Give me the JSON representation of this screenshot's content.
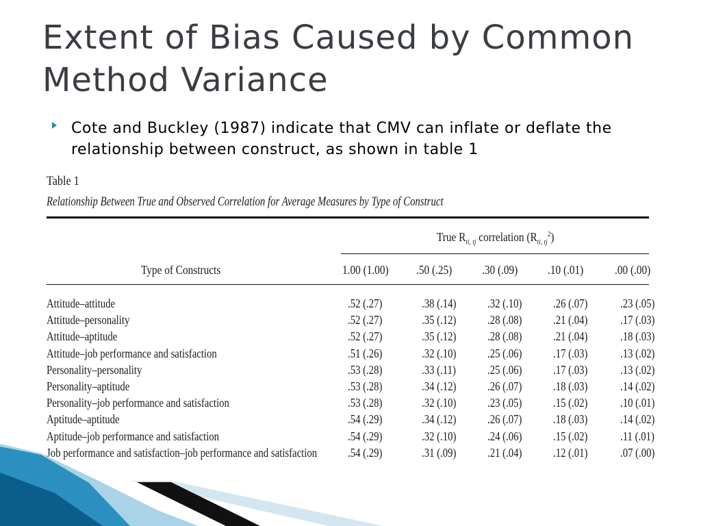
{
  "slide": {
    "title": "Extent of Bias Caused by Common Method Variance",
    "bullet": "Cote and Buckley (1987) indicate that CMV can inflate or deflate the relationship between construct, as shown in table 1"
  },
  "table": {
    "label": "Table 1",
    "caption": "Relationship Between True and Observed Correlation for Average Measures by Type of Construct",
    "true_header": "True R",
    "true_header_sub": "ti, tj",
    "true_header_mid": " correlation (R",
    "true_header_sub2": "ti, tj",
    "true_header_sup": "2",
    "true_header_end": ")",
    "type_header": "Type of Constructs",
    "columns": [
      "1.00 (1.00)",
      ".50 (.25)",
      ".30 (.09)",
      ".10 (.01)",
      ".00 (.00)"
    ],
    "rows": [
      {
        "type": "Attitude–attitude",
        "values": [
          ".52 (.27)",
          ".38 (.14)",
          ".32 (.10)",
          ".26 (.07)",
          ".23 (.05)"
        ]
      },
      {
        "type": "Attitude–personality",
        "values": [
          ".52 (.27)",
          ".35 (.12)",
          ".28 (.08)",
          ".21 (.04)",
          ".17 (.03)"
        ]
      },
      {
        "type": "Attitude–aptitude",
        "values": [
          ".52 (.27)",
          ".35 (.12)",
          ".28 (.08)",
          ".21 (.04)",
          ".18 (.03)"
        ]
      },
      {
        "type": "Attitude–job performance and satisfaction",
        "values": [
          ".51 (.26)",
          ".32 (.10)",
          ".25 (.06)",
          ".17 (.03)",
          ".13 (.02)"
        ]
      },
      {
        "type": "Personality–personality",
        "values": [
          ".53 (.28)",
          ".33 (.11)",
          ".25 (.06)",
          ".17 (.03)",
          ".13 (.02)"
        ]
      },
      {
        "type": "Personality–aptitude",
        "values": [
          ".53 (.28)",
          ".34 (.12)",
          ".26 (.07)",
          ".18 (.03)",
          ".14 (.02)"
        ]
      },
      {
        "type": "Personality–job performance and satisfaction",
        "values": [
          ".53 (.28)",
          ".32 (.10)",
          ".23 (.05)",
          ".15 (.02)",
          ".10 (.01)"
        ]
      },
      {
        "type": "Aptitude–aptitude",
        "values": [
          ".54 (.29)",
          ".34 (.12)",
          ".26 (.07)",
          ".18 (.03)",
          ".14 (.02)"
        ]
      },
      {
        "type": "Aptitude–job performance and satisfaction",
        "values": [
          ".54 (.29)",
          ".32 (.10)",
          ".24 (.06)",
          ".15 (.02)",
          ".11 (.01)"
        ]
      },
      {
        "type": "Job performance and satisfaction–job performance and satisfaction",
        "values": [
          ".54 (.29)",
          ".31 (.09)",
          ".21 (.04)",
          ".12 (.01)",
          ".07 (.00)"
        ]
      }
    ]
  },
  "colors": {
    "title": "#3a3d42",
    "bullet": "#1f8ea8",
    "decor_light": "#a9d3e6",
    "decor_mid": "#2b8fc0",
    "decor_dark": "#0b5e8a"
  }
}
